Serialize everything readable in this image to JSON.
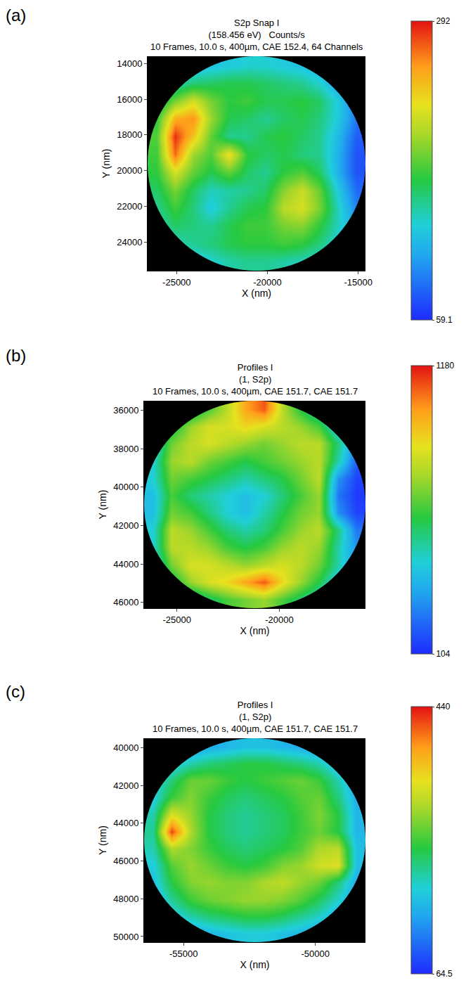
{
  "chart_data": [
    {
      "type": "heatmap",
      "panel": "(a)",
      "title": [
        "S2p Snap I",
        "(158.456 eV)   Counts/s",
        "10 Frames, 10.0 s, 400µm, CAE 152.4, 64 Channels"
      ],
      "x_label": "X (nm)",
      "y_label": "Y (nm)",
      "xlim": [
        -26600,
        -14600
      ],
      "ylim": [
        25600,
        13600
      ],
      "xticks": [
        -25000,
        -20000,
        -15000
      ],
      "yticks": [
        14000,
        16000,
        18000,
        20000,
        22000,
        24000
      ],
      "colorbar_range": [
        59.1,
        292
      ],
      "colorbar_ticks": [
        59.1,
        292
      ],
      "x": [
        -26100,
        -25100,
        -24100,
        -23100,
        -22100,
        -21100,
        -20100,
        -19100,
        -18100,
        -17100,
        -16100,
        -15100
      ],
      "y": [
        14100,
        15100,
        16100,
        17100,
        18100,
        19100,
        20100,
        21100,
        22100,
        23100,
        24100,
        25100
      ],
      "z": [
        [
          null,
          null,
          120,
          125,
          130,
          135,
          135,
          130,
          125,
          115,
          null,
          null
        ],
        [
          null,
          140,
          155,
          160,
          165,
          165,
          160,
          155,
          150,
          135,
          110,
          null
        ],
        [
          150,
          190,
          220,
          190,
          170,
          175,
          165,
          165,
          170,
          160,
          130,
          95
        ],
        [
          170,
          250,
          260,
          200,
          165,
          160,
          150,
          160,
          165,
          155,
          130,
          90
        ],
        [
          180,
          285,
          240,
          185,
          150,
          150,
          165,
          170,
          160,
          150,
          120,
          80
        ],
        [
          175,
          270,
          200,
          180,
          230,
          170,
          160,
          165,
          155,
          150,
          115,
          75
        ],
        [
          170,
          220,
          185,
          165,
          185,
          160,
          150,
          170,
          180,
          160,
          115,
          75
        ],
        [
          160,
          190,
          160,
          140,
          145,
          150,
          160,
          195,
          215,
          185,
          130,
          85
        ],
        [
          150,
          175,
          155,
          130,
          150,
          165,
          170,
          210,
          220,
          190,
          140,
          95
        ],
        [
          140,
          160,
          155,
          150,
          165,
          175,
          175,
          190,
          195,
          170,
          140,
          110
        ],
        [
          null,
          140,
          150,
          155,
          165,
          170,
          170,
          175,
          170,
          155,
          130,
          null
        ],
        [
          null,
          null,
          125,
          135,
          145,
          150,
          150,
          145,
          140,
          130,
          null,
          null
        ]
      ]
    },
    {
      "type": "heatmap",
      "panel": "(b)",
      "title": [
        "Profiles I",
        "(1, S2p)",
        "10 Frames, 10.0 s, 400µm, CAE 151.7, CAE 151.7"
      ],
      "x_label": "X (nm)",
      "y_label": "Y (nm)",
      "xlim": [
        -26600,
        -15800
      ],
      "ylim": [
        46300,
        35500
      ],
      "xticks": [
        -25000,
        -20000
      ],
      "yticks": [
        36000,
        38000,
        40000,
        42000,
        44000,
        46000
      ],
      "colorbar_range": [
        104,
        1180
      ],
      "colorbar_ticks": [
        104,
        1180
      ],
      "x": [
        -26150,
        -25250,
        -24350,
        -23450,
        -22550,
        -21650,
        -20750,
        -19850,
        -18950,
        -18050,
        -17150,
        -16250
      ],
      "y": [
        35950,
        36850,
        37750,
        38650,
        39550,
        40450,
        41350,
        42250,
        43150,
        44050,
        44950,
        45850
      ],
      "z": [
        [
          null,
          null,
          500,
          650,
          800,
          1000,
          1100,
          800,
          600,
          450,
          null,
          null
        ],
        [
          null,
          550,
          750,
          850,
          850,
          900,
          850,
          800,
          750,
          650,
          400,
          null
        ],
        [
          400,
          700,
          800,
          850,
          800,
          750,
          700,
          750,
          800,
          800,
          550,
          300
        ],
        [
          450,
          750,
          800,
          700,
          650,
          600,
          650,
          700,
          750,
          800,
          500,
          200
        ],
        [
          450,
          700,
          650,
          600,
          550,
          500,
          550,
          600,
          700,
          800,
          300,
          150
        ],
        [
          400,
          650,
          550,
          500,
          450,
          400,
          450,
          550,
          650,
          750,
          250,
          130
        ],
        [
          400,
          700,
          650,
          550,
          450,
          400,
          500,
          600,
          700,
          750,
          300,
          150
        ],
        [
          450,
          800,
          750,
          650,
          550,
          500,
          550,
          650,
          750,
          800,
          550,
          250
        ],
        [
          450,
          800,
          800,
          750,
          650,
          600,
          650,
          750,
          800,
          750,
          500,
          300
        ],
        [
          400,
          700,
          850,
          850,
          800,
          750,
          800,
          850,
          800,
          700,
          500,
          300
        ],
        [
          null,
          550,
          750,
          850,
          900,
          1000,
          1100,
          900,
          750,
          600,
          400,
          null
        ],
        [
          null,
          null,
          450,
          550,
          650,
          700,
          750,
          650,
          550,
          450,
          null,
          null
        ]
      ]
    },
    {
      "type": "heatmap",
      "panel": "(c)",
      "title": [
        "Profiles I",
        "(1, S2p)",
        "10 Frames, 10.0 s, 400µm, CAE 151.7, CAE 151.7"
      ],
      "x_label": "X (nm)",
      "y_label": "Y (nm)",
      "xlim": [
        -56500,
        -48100
      ],
      "ylim": [
        50300,
        39500
      ],
      "xticks": [
        -55000,
        -50000
      ],
      "yticks": [
        40000,
        42000,
        44000,
        46000,
        48000,
        50000
      ],
      "colorbar_range": [
        64.5,
        440
      ],
      "colorbar_ticks": [
        64.5,
        440
      ],
      "x": [
        -56150,
        -55450,
        -54750,
        -54050,
        -53350,
        -52650,
        -51950,
        -51250,
        -50550,
        -49850,
        -49150,
        -48450
      ],
      "y": [
        39950,
        40850,
        41750,
        42650,
        43550,
        44450,
        45350,
        46250,
        47150,
        48050,
        48950,
        49850
      ],
      "z": [
        [
          null,
          null,
          140,
          150,
          160,
          170,
          170,
          160,
          150,
          140,
          null,
          null
        ],
        [
          null,
          170,
          200,
          220,
          230,
          240,
          240,
          230,
          220,
          200,
          160,
          null
        ],
        [
          170,
          220,
          270,
          270,
          250,
          240,
          250,
          260,
          270,
          250,
          200,
          150
        ],
        [
          180,
          250,
          280,
          250,
          230,
          220,
          230,
          240,
          260,
          270,
          220,
          150
        ],
        [
          200,
          330,
          290,
          240,
          220,
          210,
          220,
          230,
          250,
          280,
          240,
          160
        ],
        [
          210,
          420,
          300,
          240,
          220,
          210,
          220,
          230,
          250,
          270,
          240,
          160
        ],
        [
          200,
          300,
          280,
          250,
          230,
          220,
          230,
          240,
          260,
          300,
          310,
          170
        ],
        [
          180,
          260,
          290,
          270,
          250,
          240,
          250,
          280,
          290,
          320,
          330,
          170
        ],
        [
          170,
          240,
          280,
          290,
          280,
          280,
          300,
          310,
          290,
          270,
          220,
          150
        ],
        [
          150,
          210,
          250,
          270,
          280,
          290,
          290,
          280,
          260,
          230,
          190,
          140
        ],
        [
          null,
          170,
          200,
          220,
          230,
          240,
          240,
          230,
          210,
          190,
          150,
          null
        ],
        [
          null,
          null,
          140,
          160,
          170,
          180,
          180,
          170,
          160,
          140,
          null,
          null
        ]
      ]
    }
  ]
}
